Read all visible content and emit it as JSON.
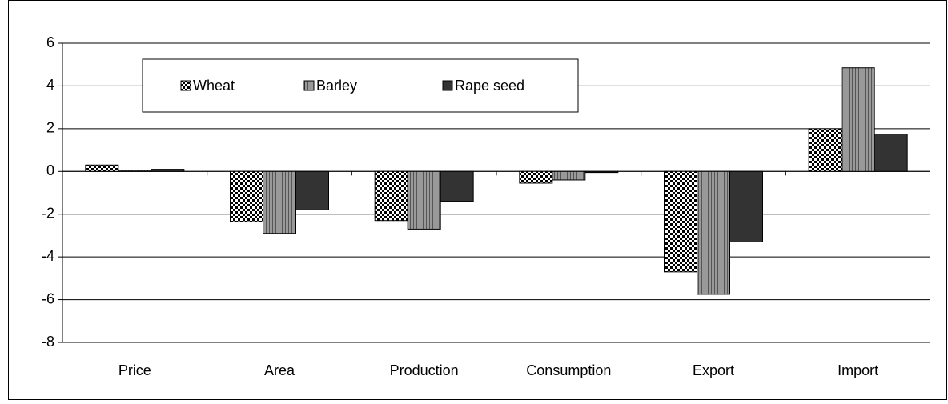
{
  "chart_data": {
    "type": "bar",
    "categories": [
      "Price",
      "Area",
      "Production",
      "Consumption",
      "Export",
      "Import"
    ],
    "series": [
      {
        "name": "Wheat",
        "color": "#ffffff",
        "values": [
          0.3,
          -2.35,
          -2.3,
          -0.55,
          -4.7,
          2.0
        ]
      },
      {
        "name": "Barley",
        "color": "#999999",
        "values": [
          0.05,
          -2.9,
          -2.7,
          -0.4,
          -5.75,
          4.85
        ]
      },
      {
        "name": "Rape seed",
        "color": "#333333",
        "values": [
          0.1,
          -1.8,
          -1.4,
          -0.05,
          -3.3,
          1.75
        ]
      }
    ],
    "ylim": [
      -8,
      6
    ],
    "yticks": [
      -8,
      -6,
      -4,
      -2,
      0,
      2,
      4,
      6
    ],
    "grid": true,
    "legend": "top"
  }
}
